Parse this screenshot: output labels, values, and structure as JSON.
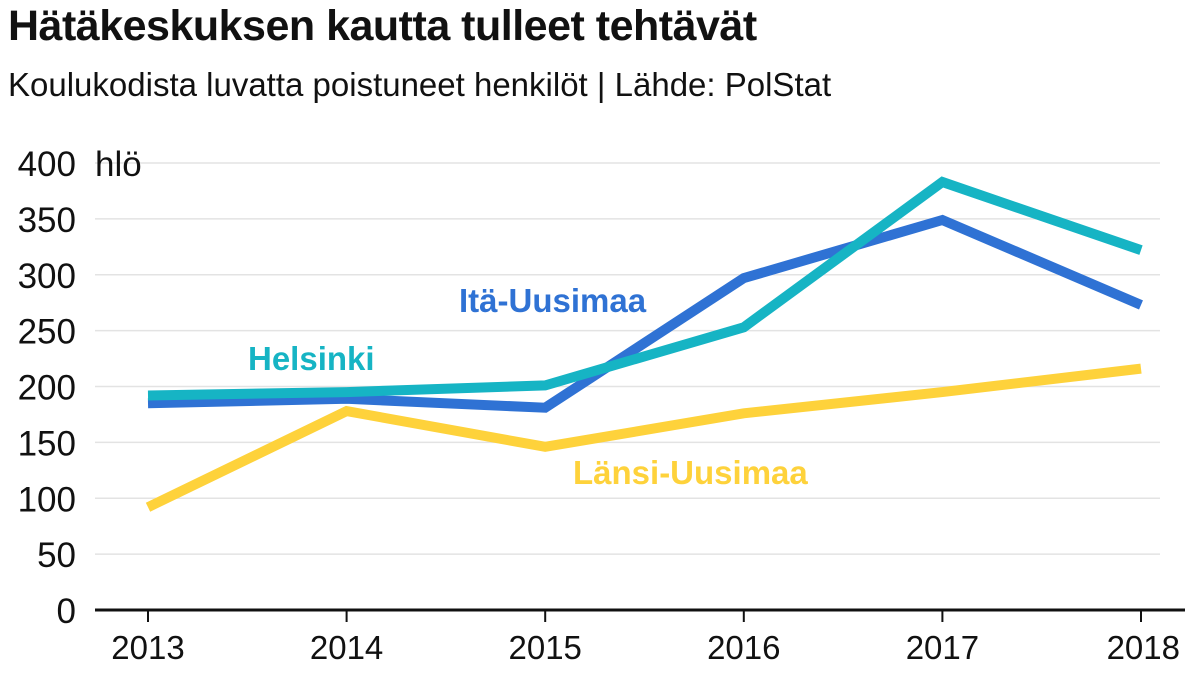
{
  "title": "Hätäkeskuksen kautta tulleet tehtävät",
  "subtitle": "Koulukodista luvatta poistuneet henkilöt | Lähde: PolStat",
  "chart_data": {
    "type": "line",
    "title": "Hätäkeskuksen kautta tulleet tehtävät",
    "subtitle": "Koulukodista luvatta poistuneet henkilöt | Lähde: PolStat",
    "ylabel": "hlö",
    "xlabel": "",
    "categories": [
      "2013",
      "2014",
      "2015",
      "2016",
      "2017",
      "2018"
    ],
    "ylim": [
      0,
      400
    ],
    "yticks": [
      0,
      50,
      100,
      150,
      200,
      250,
      300,
      350,
      400
    ],
    "grid": "horizontal",
    "series": [
      {
        "name": "Itä-Uusimaa",
        "color": "#2f72d4",
        "values": [
          185,
          189,
          181,
          297,
          349,
          273
        ]
      },
      {
        "name": "Helsinki",
        "color": "#16b4c4",
        "values": [
          192,
          195,
          201,
          253,
          383,
          322
        ]
      },
      {
        "name": "Länsi-Uusimaa",
        "color": "#fed23b",
        "values": [
          92,
          178,
          146,
          176,
          195,
          216
        ]
      }
    ]
  }
}
